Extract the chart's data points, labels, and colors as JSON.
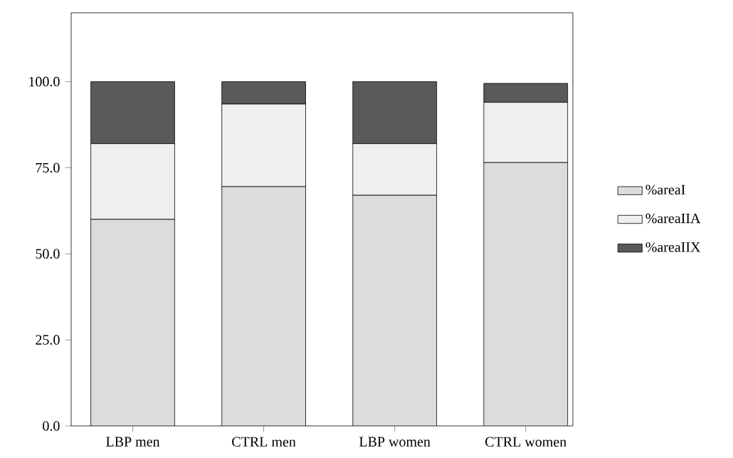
{
  "chart_data": {
    "type": "bar",
    "stacked": true,
    "categories": [
      "LBP men",
      "CTRL men",
      "LBP women",
      "CTRL women"
    ],
    "series": [
      {
        "name": "%areaI",
        "color": "#dcdcdc",
        "values": [
          60,
          69.5,
          67,
          76.5
        ]
      },
      {
        "name": "%areaIIA",
        "color": "#efefef",
        "values": [
          22,
          24,
          15,
          17.5
        ]
      },
      {
        "name": "%areaIIX",
        "color": "#5a5a5a",
        "values": [
          18,
          6.5,
          18,
          5.5
        ]
      }
    ],
    "ylim": [
      0,
      120
    ],
    "yticks": [
      {
        "value": 0,
        "label": "0.0"
      },
      {
        "value": 25,
        "label": "25.0"
      },
      {
        "value": 50,
        "label": "50.0"
      },
      {
        "value": 75,
        "label": "75.0"
      },
      {
        "value": 100,
        "label": "100.0"
      }
    ],
    "legend": "right",
    "grid": false
  }
}
